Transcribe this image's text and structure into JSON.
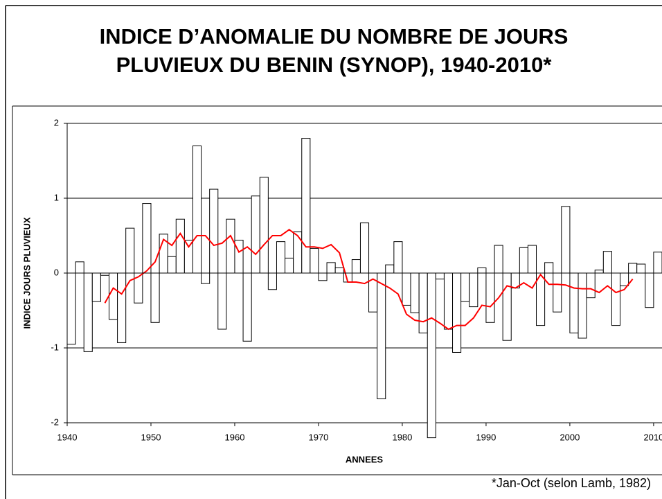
{
  "chart_data": {
    "type": "bar_line",
    "title": [
      "INDICE D’ANOMALIE DU NOMBRE DE JOURS",
      "PLUVIEUX DU BENIN (SYNOP), 1940-2010*"
    ],
    "x_label": "ANNEES",
    "y_label": "INDICE JOURS PLUVIEUX",
    "note": "*Jan-Oct (selon Lamb, 1982)",
    "x": [
      1940,
      1941,
      1942,
      1943,
      1944,
      1945,
      1946,
      1947,
      1948,
      1949,
      1950,
      1951,
      1952,
      1953,
      1954,
      1955,
      1956,
      1957,
      1958,
      1959,
      1960,
      1961,
      1962,
      1963,
      1964,
      1965,
      1966,
      1967,
      1968,
      1969,
      1970,
      1971,
      1972,
      1973,
      1974,
      1975,
      1976,
      1977,
      1978,
      1979,
      1980,
      1981,
      1982,
      1983,
      1984,
      1985,
      1986,
      1987,
      1988,
      1989,
      1990,
      1991,
      1992,
      1993,
      1994,
      1995,
      1996,
      1997,
      1998,
      1999,
      2000,
      2001,
      2002,
      2003,
      2004,
      2005,
      2006,
      2007,
      2008,
      2009,
      2010
    ],
    "series": [
      {
        "type": "bar",
        "color": "#ffffff",
        "edge_color": "#000000",
        "values": [
          -0.95,
          0.15,
          -1.05,
          -0.38,
          -0.03,
          -0.62,
          -0.93,
          0.6,
          -0.4,
          0.93,
          -0.66,
          0.52,
          0.22,
          0.72,
          0.44,
          1.7,
          -0.14,
          1.12,
          -0.75,
          0.72,
          0.44,
          -0.91,
          1.03,
          1.28,
          -0.22,
          0.42,
          0.2,
          0.55,
          1.8,
          0.33,
          -0.1,
          0.14,
          0.07,
          -0.12,
          0.18,
          0.67,
          -0.52,
          -1.68,
          0.11,
          0.42,
          -0.43,
          -0.53,
          -0.8,
          -2.2,
          -0.08,
          -0.75,
          -1.06,
          -0.38,
          -0.45,
          0.07,
          -0.66,
          0.37,
          -0.9,
          -0.2,
          0.34,
          0.37,
          -0.7,
          0.14,
          -0.52,
          0.89,
          -0.8,
          -0.87,
          -0.33,
          0.04,
          0.29,
          -0.7,
          -0.17,
          0.13,
          0.12,
          -0.46,
          0.28
        ]
      },
      {
        "type": "line",
        "color": "#ff0000",
        "values": [
          null,
          null,
          null,
          null,
          -0.4,
          -0.2,
          -0.28,
          -0.1,
          -0.05,
          0.03,
          0.15,
          0.45,
          0.37,
          0.53,
          0.35,
          0.5,
          0.5,
          0.37,
          0.4,
          0.5,
          0.28,
          0.35,
          0.25,
          0.38,
          0.5,
          0.5,
          0.58,
          0.5,
          0.35,
          0.35,
          0.33,
          0.38,
          0.27,
          -0.12,
          -0.12,
          -0.14,
          -0.08,
          -0.14,
          -0.2,
          -0.28,
          -0.55,
          -0.63,
          -0.65,
          -0.6,
          -0.67,
          -0.75,
          -0.7,
          -0.7,
          -0.6,
          -0.43,
          -0.45,
          -0.33,
          -0.17,
          -0.2,
          -0.13,
          -0.2,
          -0.02,
          -0.15,
          -0.15,
          -0.16,
          -0.2,
          -0.21,
          -0.21,
          -0.26,
          -0.17,
          -0.26,
          -0.22,
          -0.08,
          null,
          null,
          null
        ]
      }
    ],
    "xlim": [
      1940,
      2011
    ],
    "xticks": [
      1940,
      1950,
      1960,
      1970,
      1980,
      1990,
      2000,
      2010
    ],
    "ylim": [
      -2,
      2
    ],
    "yticks": [
      -2,
      -1,
      0,
      1,
      2
    ],
    "grid": true
  }
}
